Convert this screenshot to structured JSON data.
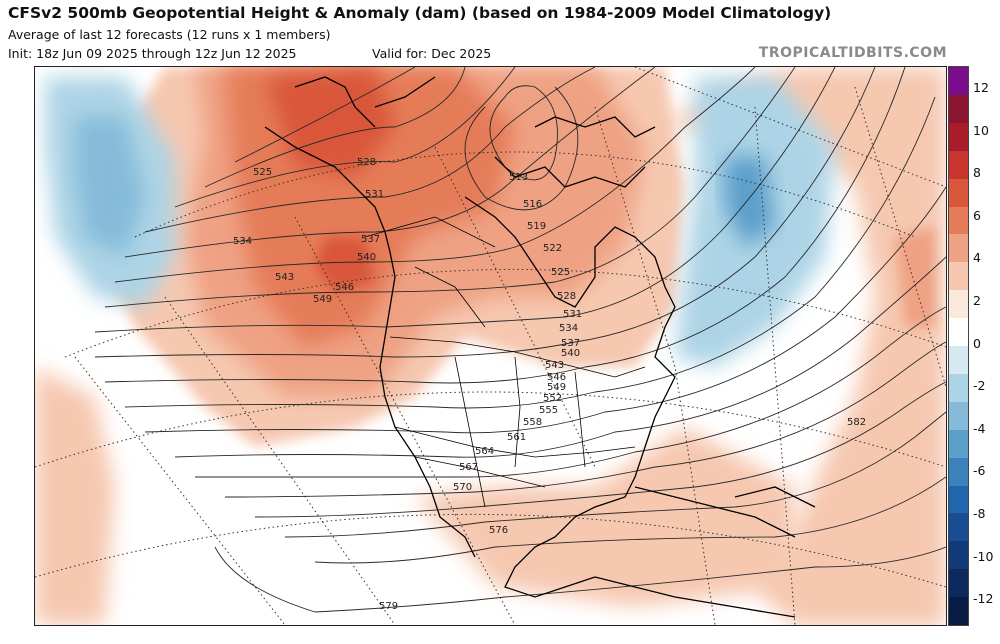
{
  "header": {
    "title": "CFSv2 500mb Geopotential Height & Anomaly (dam) (based on 1984-2009 Model Climatology)",
    "subtitle": "Average of last 12 forecasts (12 runs x 1 members)",
    "init": "Init: 18z Jun 09 2025 through 12z Jun 12 2025",
    "valid": "Valid for: Dec 2025",
    "brand": "TROPICALTIDBITS.COM"
  },
  "colorbar": {
    "ticks": [
      "12",
      "10",
      "8",
      "6",
      "4",
      "2",
      "0",
      "-2",
      "-4",
      "-6",
      "-8",
      "-10",
      "-12"
    ],
    "colors": [
      "#7b0c8b",
      "#8b1430",
      "#a91d2b",
      "#c8352c",
      "#d9573b",
      "#e57b59",
      "#efa183",
      "#f6c8b0",
      "#fbe8dc",
      "#ffffff",
      "#d6e8f0",
      "#add4e6",
      "#85bbd9",
      "#5b9fcb",
      "#3b82bd",
      "#2166ac",
      "#184d94",
      "#123a78",
      "#0d2a5e",
      "#081c45"
    ]
  },
  "contour_labels": [
    "525",
    "528",
    "531",
    "534",
    "537",
    "540",
    "543",
    "546",
    "549",
    "513",
    "516",
    "519",
    "522",
    "525",
    "528",
    "531",
    "534",
    "537",
    "540",
    "543",
    "546",
    "549",
    "552",
    "555",
    "558",
    "561",
    "564",
    "567",
    "570",
    "576",
    "579",
    "582"
  ]
}
